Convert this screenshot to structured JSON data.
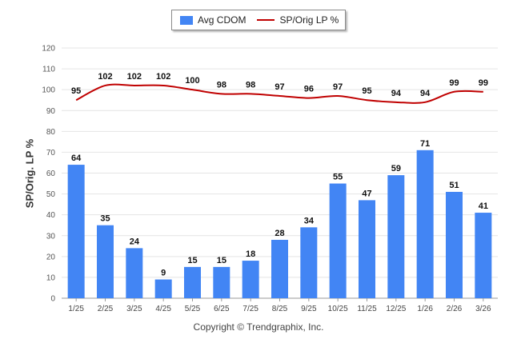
{
  "chart_data": {
    "type": "bar",
    "categories": [
      "1/25",
      "2/25",
      "3/25",
      "4/25",
      "5/25",
      "6/25",
      "7/25",
      "8/25",
      "9/25",
      "10/25",
      "11/25",
      "12/25",
      "1/26",
      "2/26",
      "3/26"
    ],
    "series": [
      {
        "name": "Avg CDOM",
        "kind": "bar",
        "color": "#4285f4",
        "values": [
          64,
          35,
          24,
          9,
          15,
          15,
          18,
          28,
          34,
          55,
          47,
          59,
          71,
          51,
          41
        ]
      },
      {
        "name": "SP/Orig LP %",
        "kind": "line",
        "color": "#c00000",
        "values": [
          95,
          102,
          102,
          102,
          100,
          98,
          98,
          97,
          96,
          97,
          95,
          94,
          94,
          99,
          99
        ]
      }
    ],
    "ylabel": "SP/Orig. LP %",
    "ylim": [
      0,
      120
    ],
    "yticks": [
      0,
      10,
      20,
      30,
      40,
      50,
      60,
      70,
      80,
      90,
      100,
      110,
      120
    ],
    "legend_position": "top-center",
    "grid": true
  },
  "legend": {
    "bar_label": "Avg CDOM",
    "line_label": "SP/Orig LP %"
  },
  "footer": "Copyright © Trendgraphix, Inc."
}
